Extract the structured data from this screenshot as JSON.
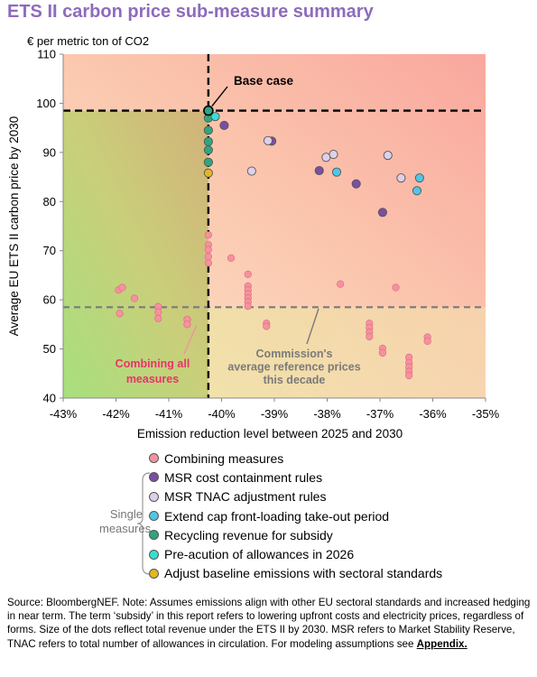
{
  "title": "ETS II carbon price sub-measure summary",
  "unit_label": "€ per metric ton of CO2",
  "chart_data": {
    "type": "scatter",
    "xlabel": "Emission reduction level between 2025 and 2030",
    "ylabel": "Average EU ETS II carbon price by 2030",
    "xlim": [
      -43,
      -35
    ],
    "ylim": [
      40,
      110
    ],
    "x_ticks": [
      -43,
      -42,
      -41,
      -40,
      -39,
      -38,
      -37,
      -36,
      -35
    ],
    "x_tick_labels": [
      "-43%",
      "-42%",
      "-41%",
      "-40%",
      "-39%",
      "-38%",
      "-37%",
      "-36%",
      "-35%"
    ],
    "y_ticks": [
      40,
      50,
      60,
      70,
      80,
      90,
      100,
      110
    ],
    "y_tick_labels": [
      "40",
      "50",
      "60",
      "70",
      "80",
      "90",
      "100",
      "110"
    ],
    "base_case": {
      "x": -40.25,
      "y": 98.5,
      "label": "Base case"
    },
    "reference_price": {
      "y": 58.5,
      "label": "Commission's average reference prices this decade"
    },
    "combining_label": "Combining all measures",
    "series": [
      {
        "name": "Combining measures",
        "color": "#f4929f",
        "points": [
          [
            -41.95,
            62
          ],
          [
            -41.88,
            62.5
          ],
          [
            -41.65,
            60.3
          ],
          [
            -41.93,
            57.2
          ],
          [
            -41.2,
            58.6
          ],
          [
            -41.2,
            57.5
          ],
          [
            -41.2,
            56.2
          ],
          [
            -40.65,
            56
          ],
          [
            -40.65,
            55
          ],
          [
            -40.25,
            73.2
          ],
          [
            -40.25,
            71.2
          ],
          [
            -40.25,
            70.2
          ],
          [
            -40.25,
            68.8
          ],
          [
            -40.25,
            67.5
          ],
          [
            -39.82,
            68.5
          ],
          [
            -39.5,
            65.2
          ],
          [
            -39.5,
            62.8
          ],
          [
            -39.5,
            62.0
          ],
          [
            -39.5,
            61.2
          ],
          [
            -39.5,
            60.4
          ],
          [
            -39.5,
            59.6
          ],
          [
            -39.5,
            58.7
          ],
          [
            -39.15,
            55.2
          ],
          [
            -39.15,
            54.6
          ],
          [
            -37.75,
            63.2
          ],
          [
            -37.2,
            55.2
          ],
          [
            -37.2,
            54.3
          ],
          [
            -37.2,
            53.4
          ],
          [
            -37.2,
            52.5
          ],
          [
            -36.95,
            50.1
          ],
          [
            -36.95,
            49.2
          ],
          [
            -36.7,
            62.5
          ],
          [
            -36.45,
            48.3
          ],
          [
            -36.45,
            47.2
          ],
          [
            -36.45,
            46.3
          ],
          [
            -36.45,
            45.4
          ],
          [
            -36.45,
            44.6
          ],
          [
            -36.1,
            52.4
          ],
          [
            -36.1,
            51.6
          ]
        ]
      },
      {
        "name": "MSR cost containment rules",
        "color": "#7b4ea3",
        "points": [
          [
            -39.95,
            95.5
          ],
          [
            -39.05,
            92.3
          ],
          [
            -38.15,
            86.3
          ],
          [
            -37.45,
            83.6
          ],
          [
            -36.95,
            77.8
          ]
        ]
      },
      {
        "name": "MSR TNAC adjustment rules",
        "color": "#ddd0e9",
        "points": [
          [
            -39.43,
            86.2
          ],
          [
            -39.12,
            92.4
          ],
          [
            -38.02,
            89
          ],
          [
            -37.88,
            89.6
          ],
          [
            -36.85,
            89.4
          ],
          [
            -36.6,
            84.8
          ]
        ]
      },
      {
        "name": "Extend cap front-loading take-out period",
        "color": "#4fc6e8",
        "points": [
          [
            -37.82,
            86
          ],
          [
            -36.3,
            82.2
          ],
          [
            -36.25,
            84.8
          ]
        ]
      },
      {
        "name": "Recycling revenue for subsidy",
        "color": "#2fa680",
        "points": [
          [
            -40.25,
            97
          ],
          [
            -40.25,
            94.5
          ],
          [
            -40.25,
            92.2
          ],
          [
            -40.25,
            90.5
          ],
          [
            -40.25,
            88
          ]
        ]
      },
      {
        "name": "Pre-acution of allowances in 2026",
        "color": "#35e0d3",
        "points": [
          [
            -40.12,
            97.3
          ]
        ]
      },
      {
        "name": "Adjust baseline emissions with sectoral standards",
        "color": "#e2b81f",
        "points": [
          [
            -40.25,
            85.8
          ]
        ]
      }
    ]
  },
  "legend": {
    "single_label": "Single measures"
  },
  "source": {
    "text": "Source: BloombergNEF. Note: Assumes emissions align with other EU sectoral standards and increased hedging in near term. The term ‘subsidy’ in this report refers to lowering upfront costs and electricity prices, regardless of forms. Size of the dots reflect total revenue under the ETS II by 2030. MSR refers to Market Stability Reserve, TNAC refers to total number of allowances in circulation. For modeling assumptions see",
    "link": "Appendix."
  }
}
